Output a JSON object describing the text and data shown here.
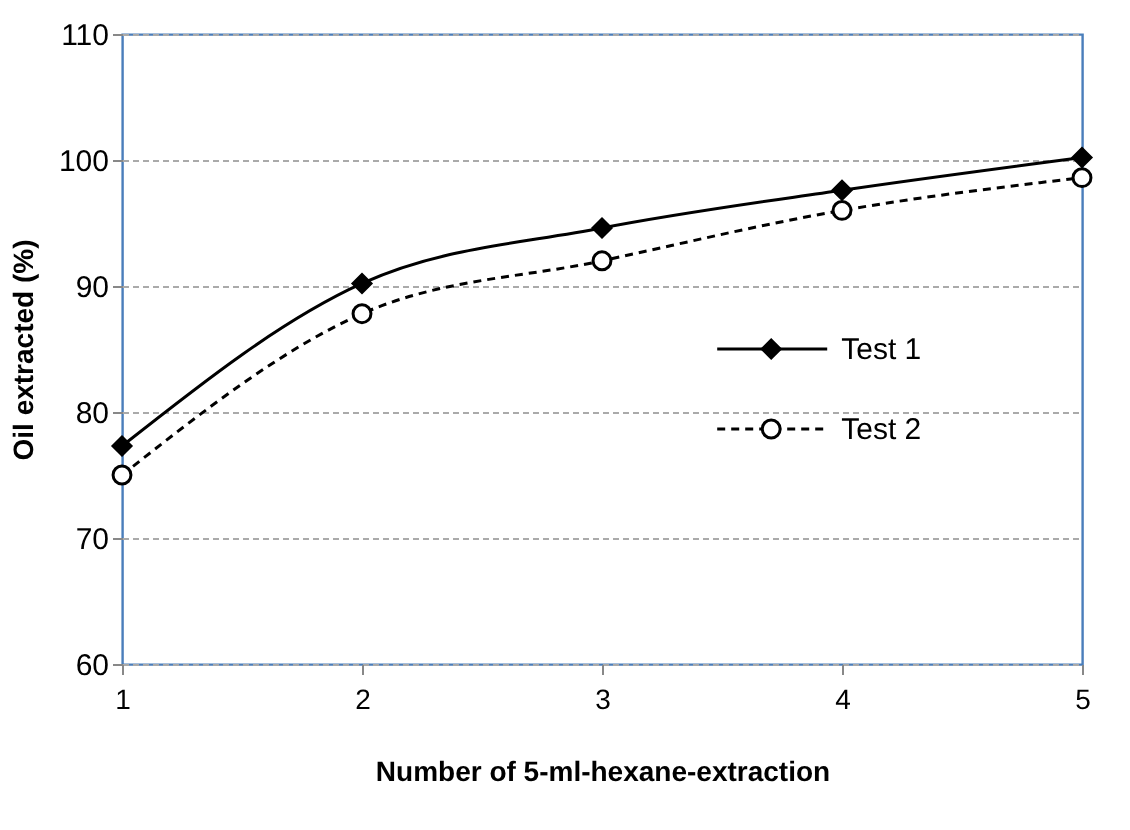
{
  "chart_data": {
    "type": "line",
    "xlabel": "Number of 5-ml-hexane-extraction",
    "ylabel": "Oil extracted (%)",
    "x": [
      1,
      2,
      3,
      4,
      5
    ],
    "xlim": [
      1,
      5
    ],
    "xticks": [
      1,
      2,
      3,
      4,
      5
    ],
    "ylim": [
      60,
      110
    ],
    "yticks": [
      60,
      70,
      80,
      90,
      100,
      110
    ],
    "grid": "y",
    "legend": "right",
    "series": [
      {
        "name": "Test 1",
        "color": "#000000",
        "values": [
          77.3,
          90.2,
          94.6,
          97.6,
          100.2
        ],
        "marker": "diamond",
        "line_style": "solid"
      },
      {
        "name": "Test 2",
        "color": "#000000",
        "values": [
          75.0,
          87.8,
          92.0,
          96.0,
          98.6
        ],
        "marker": "circle",
        "line_style": "dashed"
      }
    ]
  }
}
